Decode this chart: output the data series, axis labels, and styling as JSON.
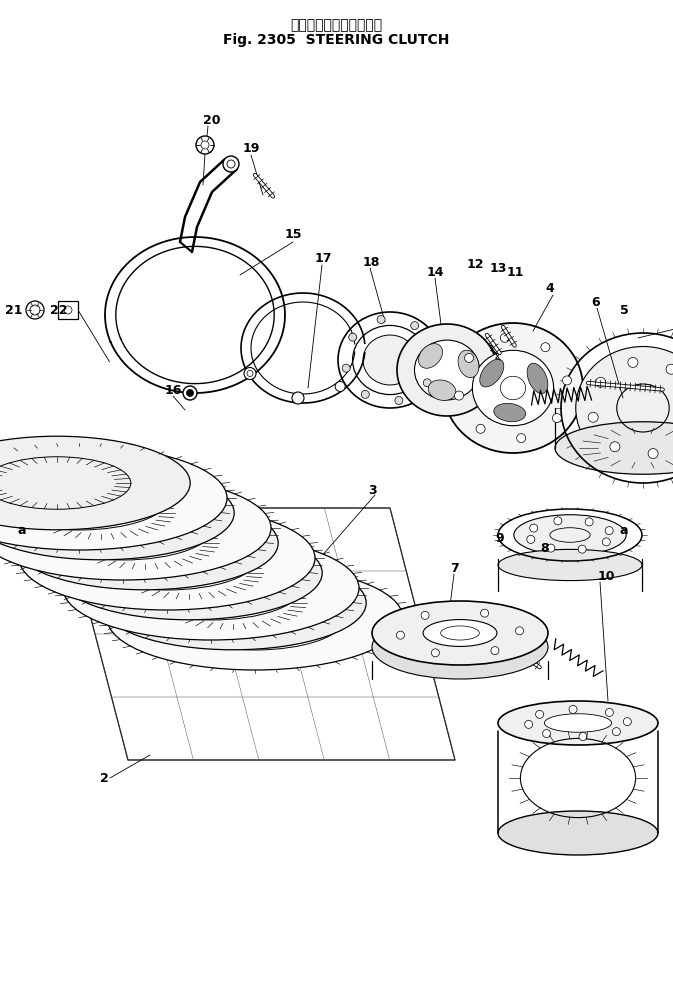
{
  "title_jp": "ステアリング　クラッチ",
  "title_en": "Fig. 2305  STEERING CLUTCH",
  "bg": "#ffffff",
  "lc": "#000000"
}
